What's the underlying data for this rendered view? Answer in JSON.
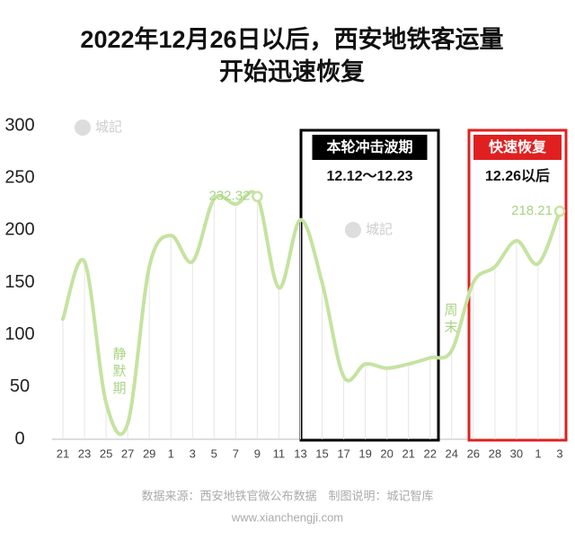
{
  "chart_data": {
    "type": "line",
    "title": [
      "2022年12月26日以后，西安地铁客运量",
      "开始迅速恢复"
    ],
    "categories": [
      "21",
      "23",
      "25",
      "27",
      "29",
      "1",
      "3",
      "5",
      "7",
      "9",
      "11",
      "13",
      "15",
      "17",
      "19",
      "20",
      "21",
      "22",
      "24",
      "26",
      "28",
      "30",
      "1",
      "3"
    ],
    "values": [
      115,
      170,
      35,
      15,
      165,
      195,
      170,
      230,
      225,
      232.32,
      145,
      210,
      150,
      60,
      72,
      68,
      72,
      78,
      85,
      150,
      165,
      190,
      168,
      218.21
    ],
    "value_labels": [
      null,
      null,
      null,
      null,
      null,
      null,
      null,
      null,
      null,
      "232.32",
      null,
      null,
      null,
      null,
      null,
      null,
      null,
      null,
      null,
      null,
      null,
      null,
      null,
      "218.21"
    ],
    "color": "#c5e3a0",
    "ylim": [
      0,
      300
    ],
    "yticks": [
      0,
      50,
      100,
      150,
      200,
      250,
      300
    ],
    "annotations": {
      "quiet": "静默期",
      "weekend": "周末",
      "watermark": "城記"
    },
    "boxes": [
      {
        "title": "本轮冲击波期",
        "text": "12.12～12.23",
        "color": "#000000"
      },
      {
        "title": "快速恢复",
        "text": "12.26以后",
        "color": "#e02020"
      }
    ],
    "source": "数据来源：西安地铁官微公布数据　制图说明：城记智库",
    "website": "www.xianchengji.com"
  }
}
